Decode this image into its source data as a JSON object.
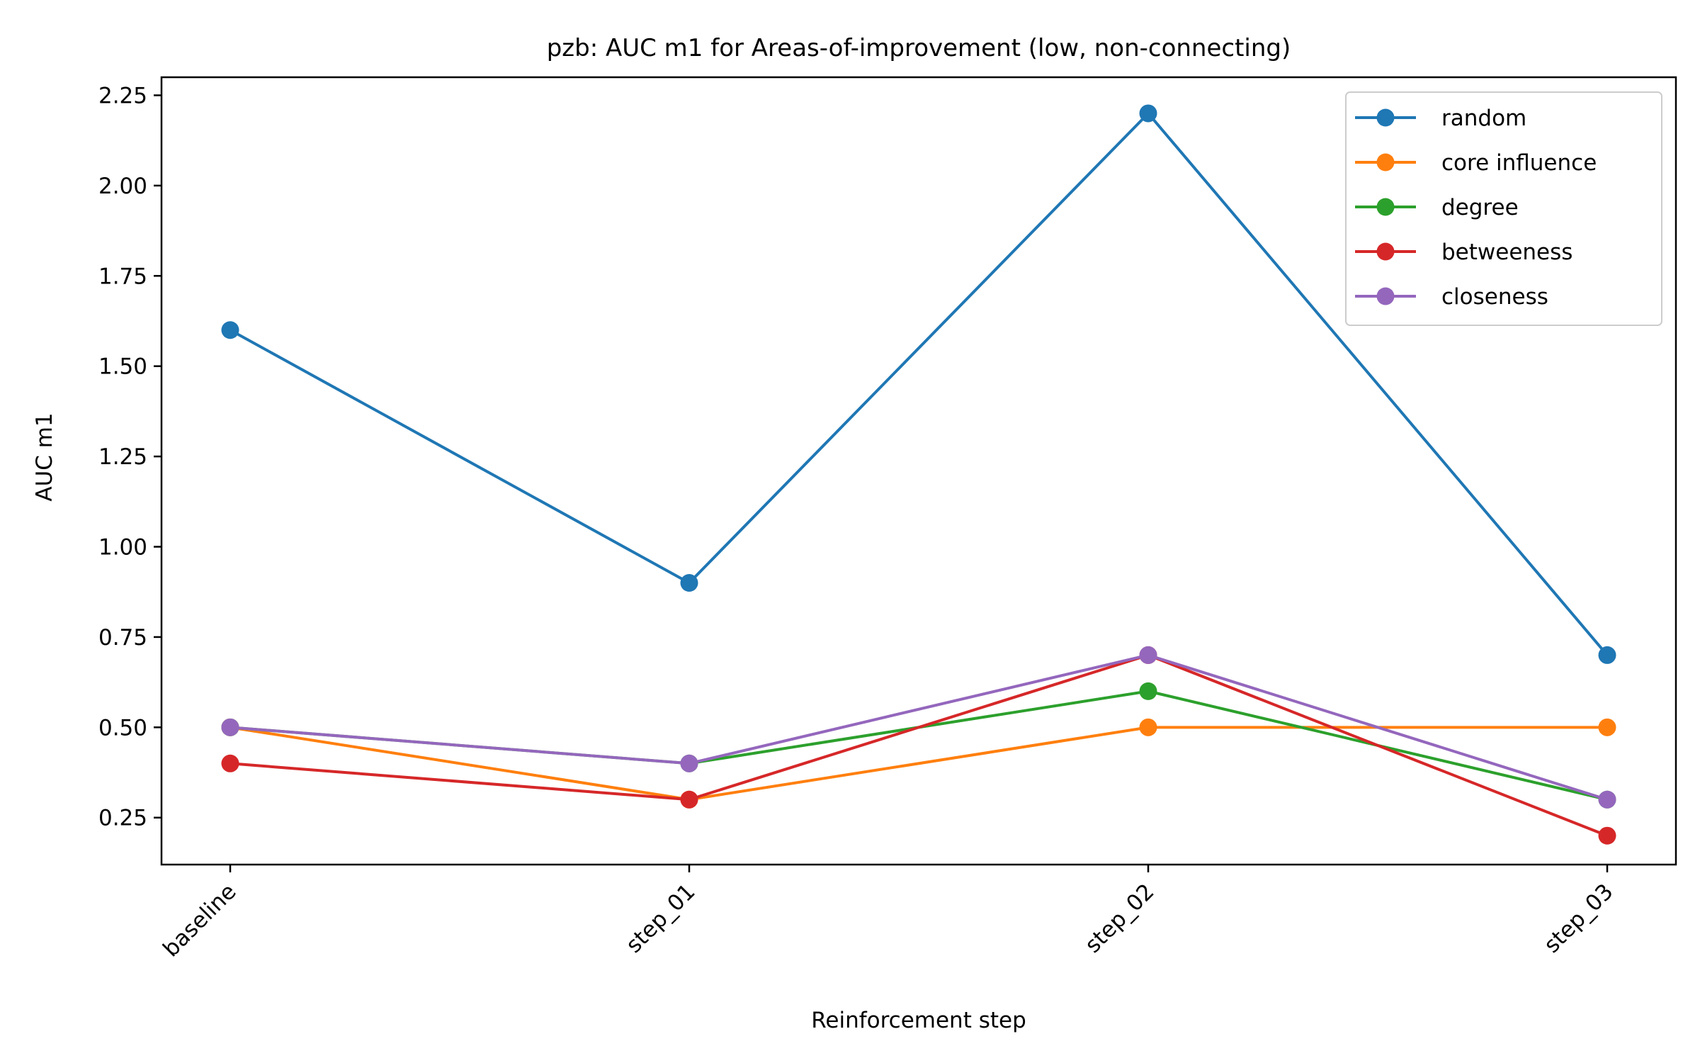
{
  "chart_data": {
    "type": "line",
    "title": "pzb: AUC m1 for Areas-of-improvement (low, non-connecting)",
    "xlabel": "Reinforcement step",
    "ylabel": "AUC m1",
    "categories": [
      "baseline",
      "step_01",
      "step_02",
      "step_03"
    ],
    "ylim": [
      0.12,
      2.3
    ],
    "yticks": [
      0.25,
      0.5,
      0.75,
      1.0,
      1.25,
      1.5,
      1.75,
      2.0,
      2.25
    ],
    "ytick_labels": [
      "0.25",
      "0.50",
      "0.75",
      "1.00",
      "1.25",
      "1.50",
      "1.75",
      "2.00",
      "2.25"
    ],
    "grid": false,
    "legend_position": "top-right",
    "series": [
      {
        "name": "random",
        "color": "#1f77b4",
        "values": [
          1.6,
          0.9,
          2.2,
          0.7
        ]
      },
      {
        "name": "core influence",
        "color": "#ff7f0e",
        "values": [
          0.5,
          0.3,
          0.5,
          0.5
        ]
      },
      {
        "name": "degree",
        "color": "#2ca02c",
        "values": [
          0.5,
          0.4,
          0.6,
          0.3
        ]
      },
      {
        "name": "betweeness",
        "color": "#d62728",
        "values": [
          0.4,
          0.3,
          0.7,
          0.2
        ]
      },
      {
        "name": "closeness",
        "color": "#9467bd",
        "values": [
          0.5,
          0.4,
          0.7,
          0.3
        ]
      }
    ]
  }
}
